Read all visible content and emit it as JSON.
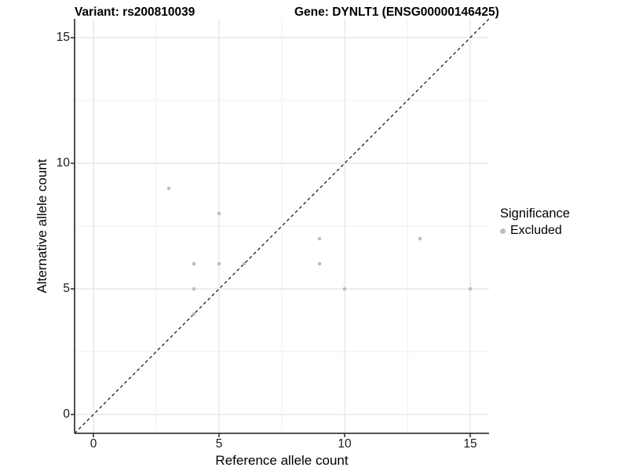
{
  "titles": {
    "variant": "Variant: rs200810039",
    "gene": "Gene: DYNLT1 (ENSG00000146425)"
  },
  "chart_data": {
    "type": "scatter",
    "title": "Variant: rs200810039   Gene: DYNLT1 (ENSG00000146425)",
    "xlabel": "Reference allele count",
    "ylabel": "Alternative allele count",
    "xlim": [
      -0.75,
      15.75
    ],
    "ylim": [
      -0.75,
      15.75
    ],
    "x_ticks": [
      0,
      5,
      10,
      15
    ],
    "y_ticks": [
      0,
      5,
      10,
      15
    ],
    "x_minor_ticks": [
      2.5,
      7.5,
      12.5
    ],
    "y_minor_ticks": [
      2.5,
      7.5,
      12.5
    ],
    "grid": "major+minor",
    "series": [
      {
        "name": "Excluded",
        "color": "#bdbdbd",
        "points": [
          [
            3,
            9
          ],
          [
            4,
            4
          ],
          [
            4,
            5
          ],
          [
            4,
            6
          ],
          [
            5,
            6
          ],
          [
            5,
            8
          ],
          [
            6,
            6
          ],
          [
            9,
            6
          ],
          [
            9,
            7
          ],
          [
            10,
            5
          ],
          [
            13,
            7
          ],
          [
            15,
            5
          ]
        ]
      }
    ],
    "identity_line": {
      "style": "dashed",
      "color": "#1a1a1a",
      "from": [
        -0.75,
        -0.75
      ],
      "to": [
        15.75,
        15.75
      ]
    },
    "legend": {
      "title": "Significance",
      "position": "right",
      "items": [
        {
          "label": "Excluded",
          "color": "#bdbdbd"
        }
      ]
    },
    "colors": {
      "background": "#ffffff",
      "grid_major": "#e3e3e3",
      "grid_minor": "#efefef",
      "axis": "#3a3a3a",
      "tick": "#333333",
      "point": "#bdbdbd",
      "identity_line": "#1a1a1a"
    }
  }
}
